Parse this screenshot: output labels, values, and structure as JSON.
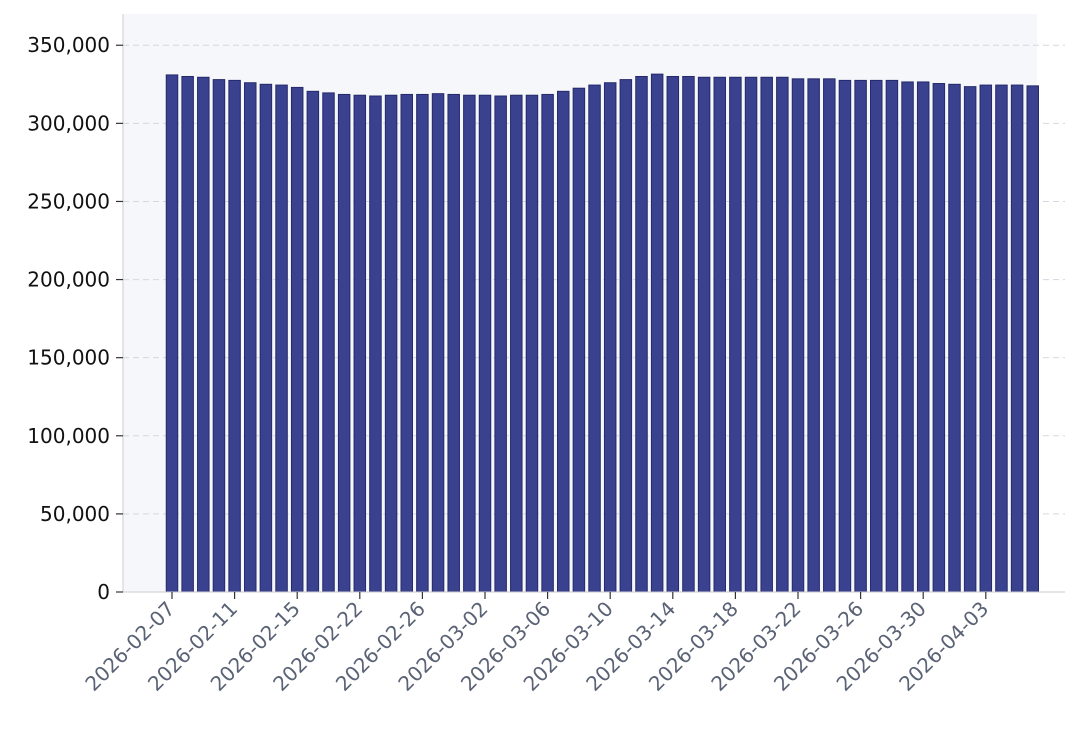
{
  "chart_data": {
    "type": "bar",
    "title": "",
    "xlabel": "",
    "ylabel": "",
    "ylim": [
      0,
      370000
    ],
    "yticks": [
      0,
      50000,
      100000,
      150000,
      200000,
      250000,
      300000,
      350000
    ],
    "ytick_labels": [
      "0",
      "50,000",
      "100,000",
      "150,000",
      "200,000",
      "250,000",
      "300,000",
      "350,000"
    ],
    "grid": "horizontal dashed",
    "categories": [
      "2026-02-07",
      "2026-02-08",
      "2026-02-09",
      "2026-02-10",
      "2026-02-11",
      "2026-02-12",
      "2026-02-13",
      "2026-02-14",
      "2026-02-15",
      "2026-02-16",
      "2026-02-17",
      "2026-02-18",
      "2026-02-22",
      "2026-02-23",
      "2026-02-24",
      "2026-02-25",
      "2026-02-26",
      "2026-02-27",
      "2026-02-28",
      "2026-03-01",
      "2026-03-02",
      "2026-03-03",
      "2026-03-04",
      "2026-03-05",
      "2026-03-06",
      "2026-03-07",
      "2026-03-08",
      "2026-03-09",
      "2026-03-10",
      "2026-03-11",
      "2026-03-12",
      "2026-03-13",
      "2026-03-14",
      "2026-03-15",
      "2026-03-16",
      "2026-03-17",
      "2026-03-18",
      "2026-03-19",
      "2026-03-20",
      "2026-03-21",
      "2026-03-22",
      "2026-03-23",
      "2026-03-24",
      "2026-03-25",
      "2026-03-26",
      "2026-03-27",
      "2026-03-28",
      "2026-03-29",
      "2026-03-30",
      "2026-03-31",
      "2026-04-01",
      "2026-04-02",
      "2026-04-03",
      "2026-04-04",
      "2026-04-05",
      "2026-04-06"
    ],
    "values": [
      331000,
      330000,
      329500,
      328000,
      327500,
      326000,
      325000,
      324500,
      323000,
      320500,
      319500,
      318500,
      318000,
      317500,
      318000,
      318500,
      318500,
      319000,
      318500,
      318000,
      318000,
      317500,
      318000,
      318000,
      318500,
      320500,
      322500,
      324500,
      326000,
      328000,
      330000,
      331500,
      330000,
      330000,
      329500,
      329500,
      329500,
      329500,
      329500,
      329500,
      328500,
      328500,
      328500,
      327500,
      327500,
      327500,
      327500,
      326500,
      326500,
      325500,
      325000,
      323500,
      324500,
      324500,
      324500,
      324000
    ],
    "xtick_labels": [
      "2026-02-07",
      "2026-02-11",
      "2026-02-15",
      "2026-02-22",
      "2026-02-26",
      "2026-03-02",
      "2026-03-06",
      "2026-03-10",
      "2026-03-14",
      "2026-03-18",
      "2026-03-22",
      "2026-03-26",
      "2026-03-30",
      "2026-04-03"
    ],
    "colors": {
      "bar": "#3a418e",
      "bar_edge": "#252a6b",
      "plot_background": "#f5f7fa",
      "grid": "#d3d8e0",
      "axis": "#cccccc"
    }
  }
}
